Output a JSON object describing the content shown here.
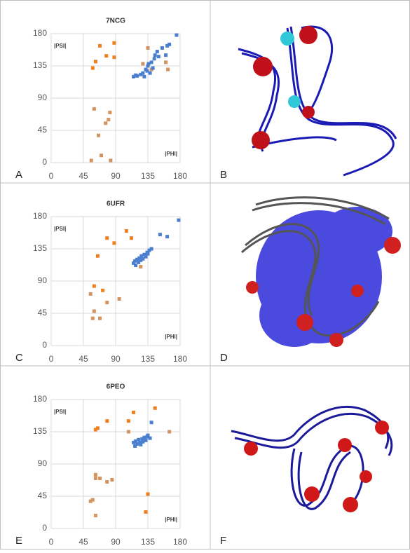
{
  "panels": [
    "A",
    "B",
    "C",
    "D",
    "E",
    "F"
  ],
  "chart_data": [
    {
      "type": "scatter",
      "title": "7NCG",
      "xlabel": "|PHI|",
      "ylabel": "|PSI|",
      "xlim": [
        0,
        180
      ],
      "ylim": [
        0,
        180
      ],
      "xticks": [
        0,
        45,
        90,
        135,
        180
      ],
      "yticks": [
        0,
        45,
        90,
        135,
        180
      ],
      "grid": true,
      "series": [
        {
          "color": "#f07f1e",
          "x": [
            58,
            62,
            68,
            77,
            88,
            88
          ],
          "values": [
            132,
            141,
            163,
            149,
            167,
            147
          ]
        },
        {
          "color": "#d4935e",
          "x": [
            60,
            66,
            70,
            76,
            80,
            82,
            56,
            83,
            128,
            135,
            140,
            160,
            163
          ],
          "values": [
            75,
            38,
            10,
            55,
            60,
            70,
            3,
            3,
            138,
            160,
            130,
            140,
            130
          ]
        },
        {
          "color": "#4a7fd0",
          "x": [
            115,
            118,
            120,
            125,
            128,
            130,
            132,
            134,
            135,
            136,
            138,
            140,
            142,
            144,
            145,
            148,
            150,
            155,
            160,
            162,
            165,
            175
          ],
          "values": [
            120,
            122,
            121,
            123,
            125,
            120,
            130,
            128,
            135,
            138,
            125,
            140,
            132,
            145,
            150,
            155,
            148,
            160,
            150,
            163,
            165,
            178
          ]
        }
      ]
    },
    {
      "type": "scatter",
      "title": "6UFR",
      "xlabel": "|PHI|",
      "ylabel": "|PSI|",
      "xlim": [
        0,
        180
      ],
      "ylim": [
        0,
        180
      ],
      "xticks": [
        0,
        45,
        90,
        135,
        180
      ],
      "yticks": [
        0,
        45,
        90,
        135,
        180
      ],
      "grid": true,
      "series": [
        {
          "color": "#f07f1e",
          "x": [
            65,
            78,
            88,
            105,
            112,
            60,
            72
          ],
          "values": [
            125,
            150,
            143,
            160,
            150,
            83,
            77
          ]
        },
        {
          "color": "#d4935e",
          "x": [
            55,
            60,
            58,
            68,
            78,
            95,
            120,
            125
          ],
          "values": [
            72,
            48,
            38,
            38,
            60,
            65,
            120,
            110
          ]
        },
        {
          "color": "#4a7fd0",
          "x": [
            115,
            117,
            118,
            120,
            122,
            123,
            125,
            126,
            128,
            130,
            132,
            134,
            135,
            137,
            140,
            152,
            162,
            178
          ],
          "values": [
            115,
            118,
            112,
            120,
            116,
            122,
            119,
            125,
            121,
            127,
            124,
            130,
            128,
            133,
            135,
            155,
            152,
            175
          ]
        }
      ]
    },
    {
      "type": "scatter",
      "title": "6PEO",
      "xlabel": "|PHI|",
      "ylabel": "|PSI|",
      "xlim": [
        0,
        180
      ],
      "ylim": [
        0,
        180
      ],
      "xticks": [
        0,
        45,
        90,
        135,
        180
      ],
      "yticks": [
        0,
        45,
        90,
        135,
        180
      ],
      "grid": true,
      "series": [
        {
          "color": "#f07f1e",
          "x": [
            62,
            65,
            78,
            108,
            115,
            145,
            135,
            132
          ],
          "values": [
            138,
            140,
            150,
            150,
            162,
            168,
            48,
            23
          ]
        },
        {
          "color": "#d4935e",
          "x": [
            55,
            58,
            62,
            62,
            68,
            78,
            85,
            62,
            108,
            165
          ],
          "values": [
            38,
            40,
            75,
            70,
            70,
            65,
            68,
            18,
            135,
            135
          ]
        },
        {
          "color": "#4a7fd0",
          "x": [
            115,
            117,
            118,
            120,
            122,
            124,
            125,
            127,
            128,
            130,
            132,
            134,
            135,
            138,
            140
          ],
          "values": [
            120,
            115,
            122,
            118,
            124,
            120,
            117,
            125,
            121,
            127,
            123,
            128,
            130,
            126,
            148
          ]
        }
      ]
    }
  ]
}
